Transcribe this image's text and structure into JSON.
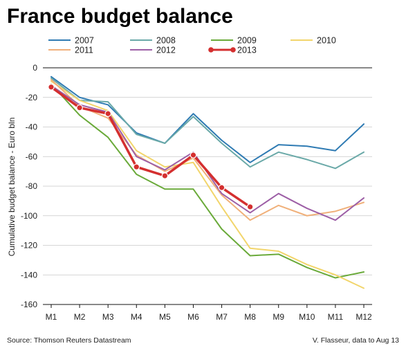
{
  "chart_data": {
    "type": "line",
    "title": "France budget balance",
    "xlabel": "",
    "ylabel": "Cumulative budget balance - Euro bln",
    "ylim": [
      -160,
      0
    ],
    "yticks": [
      0,
      -20,
      -40,
      -60,
      -80,
      -100,
      -120,
      -140,
      -160
    ],
    "categories": [
      "M1",
      "M2",
      "M3",
      "M4",
      "M5",
      "M6",
      "M7",
      "M8",
      "M9",
      "M10",
      "M11",
      "M12"
    ],
    "grid": true,
    "legend_position": "top",
    "series": [
      {
        "name": "2007",
        "color": "#2f7bb3",
        "values": [
          -6,
          -20,
          -25,
          -44,
          -51,
          -31,
          -49,
          -64,
          -52,
          -53,
          -56,
          -38
        ]
      },
      {
        "name": "2008",
        "color": "#6aa9a8",
        "values": [
          -7,
          -22,
          -23,
          -45,
          -51,
          -33,
          -51,
          -67,
          -57,
          -62,
          -68,
          -57
        ]
      },
      {
        "name": "2009",
        "color": "#6aaa3a",
        "values": [
          -11,
          -32,
          -47,
          -72,
          -82,
          -82,
          -109,
          -127,
          -126,
          -135,
          -142,
          -138
        ]
      },
      {
        "name": "2010",
        "color": "#f2d56b",
        "values": [
          -9,
          -22,
          -29,
          -56,
          -67,
          -64,
          -94,
          -122,
          -124,
          -133,
          -140,
          -149
        ]
      },
      {
        "name": "2011",
        "color": "#f0b07a",
        "values": [
          -8,
          -26,
          -34,
          -59,
          -70,
          -61,
          -86,
          -103,
          -93,
          -100,
          -97,
          -91
        ]
      },
      {
        "name": "2012",
        "color": "#9d5fa6",
        "values": [
          -12,
          -25,
          -30,
          -60,
          -69,
          -57,
          -85,
          -98,
          -85,
          -95,
          -103,
          -88
        ]
      },
      {
        "name": "2013",
        "color": "#d42f2f",
        "markers": true,
        "values": [
          -13,
          -27,
          -31,
          -67,
          -73,
          -59,
          -81,
          -94,
          null,
          null,
          null,
          null
        ]
      }
    ]
  },
  "footer": {
    "source": "Source: Thomson Reuters Datastream",
    "credit": "V. Flasseur, data to Aug 13"
  }
}
